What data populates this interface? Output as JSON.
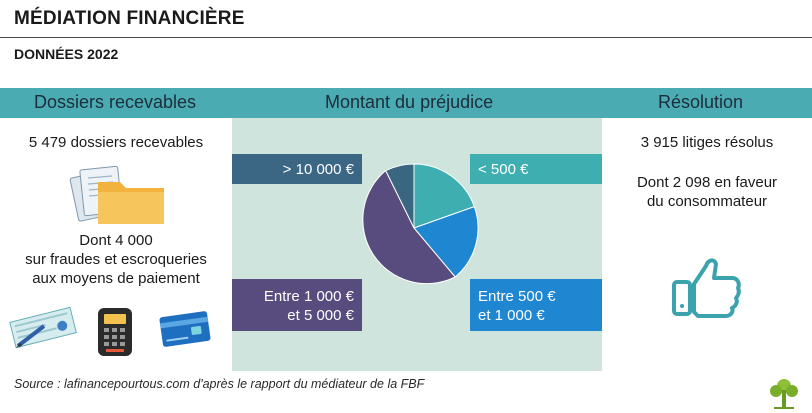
{
  "header": {
    "title": "MÉDIATION FINANCIÈRE",
    "subtitle": "DONNÉES 2022"
  },
  "columns": {
    "left_heading": "Dossiers recevables",
    "middle_heading": "Montant du préjudice",
    "right_heading": "Résolution"
  },
  "left": {
    "count_text": "5 479 dossiers recevables",
    "detail_line1": "Dont 4 000",
    "detail_line2": "sur fraudes et escroqueries",
    "detail_line3": "aux moyens de paiement",
    "icons": [
      "folder-icon",
      "cheque-icon",
      "card-terminal-icon",
      "credit-card-icon"
    ]
  },
  "middle": {
    "labels": {
      "gt10000": "> 10 000 €",
      "lt500": "< 500 €",
      "e1000_5000_line1": "Entre 1 000 €",
      "e1000_5000_line2": "et 5 000 €",
      "e500_1000_line1": "Entre 500 €",
      "e500_1000_line2": "et 1 000 €"
    },
    "pie_colors": {
      "lt500": "#3eaeb0",
      "e500_1000": "#1f86d1",
      "e1000_5000": "#574c7d",
      "gt10000": "#3a6680"
    },
    "label_colors": {
      "gt10000": "#3b6784",
      "lt500": "#3eaeb0",
      "e1000_5000": "#574c7d",
      "e500_1000": "#1f86d1"
    }
  },
  "right": {
    "resolved_text": "3 915 litiges résolus",
    "favor_line1": "Dont 2 098 en faveur",
    "favor_line2": "du consommateur",
    "icon": "thumbs-up-icon"
  },
  "footer": {
    "source": "Source : lafinancepourtous.com d'après le rapport du médiateur de la FBF",
    "logo": "tree-logo"
  }
}
